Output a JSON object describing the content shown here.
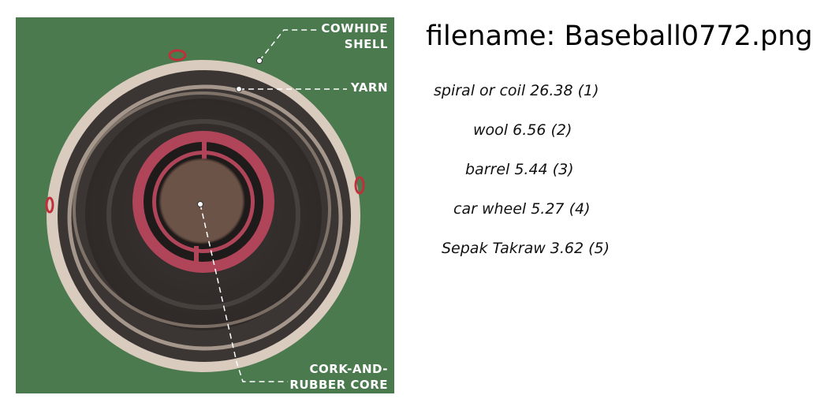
{
  "filename_line": "filename: Baseball0772.png",
  "image": {
    "background": "#4a7a4e",
    "labels": {
      "cowhide_1": "COWHIDE",
      "cowhide_2": "SHELL",
      "yarn": "YARN",
      "core_1": "CORK-AND-",
      "core_2": "RUBBER CORE"
    }
  },
  "predictions": [
    "spiral or coil 26.38 (1)",
    "wool  6.56 (2)",
    "barrel  5.44 (3)",
    "car wheel  5.27 (4)",
    "Sepak Takraw  3.62 (5)"
  ]
}
